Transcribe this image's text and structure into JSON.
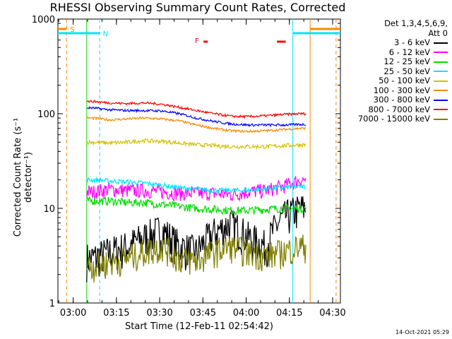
{
  "chart_data": {
    "type": "line",
    "title": "RHESSI Observing Summary Count Rates, Corrected",
    "xlabel": "Start Time (12-Feb-11 02:54:42)",
    "ylabel": "Corrected Count Rate (s⁻¹ detector⁻¹)",
    "yscale": "log",
    "ylim": [
      1,
      1000
    ],
    "y_ticks": [
      "1",
      "10",
      "100",
      "1000"
    ],
    "x_range_min": [
      0,
      98
    ],
    "x_ticks": [
      "03:00",
      "03:15",
      "03:30",
      "03:45",
      "04:00",
      "04:15",
      "04:30"
    ],
    "x_tick_min": [
      5.3,
      20.3,
      35.3,
      50.3,
      65.3,
      80.3,
      95.3
    ],
    "detector_label": "Det 1,3,4,5,6,9,",
    "attenuator_label": "Att 0",
    "x_minutes": [
      12,
      18,
      24,
      30,
      36,
      42,
      48,
      54,
      60,
      66,
      72,
      78,
      84
    ],
    "series": [
      {
        "name": "3 - 6 keV",
        "color": "#000000",
        "values": [
          3.0,
          3.5,
          4.0,
          5.0,
          6.0,
          4.0,
          3.5,
          5.5,
          7.0,
          5.0,
          4.0,
          8.0,
          10.0
        ]
      },
      {
        "name": "6 - 12 keV",
        "color": "#ff00ff",
        "values": [
          15,
          16,
          15.5,
          15.5,
          15,
          14.5,
          14.5,
          14.5,
          14,
          15,
          15.5,
          17,
          20
        ]
      },
      {
        "name": "12 - 25 keV",
        "color": "#00dd00",
        "values": [
          12,
          12,
          11.5,
          11.5,
          11,
          10.5,
          10,
          9.8,
          9.5,
          9.5,
          9.8,
          10,
          10
        ]
      },
      {
        "name": "25 - 50 keV",
        "color": "#00e5ff",
        "values": [
          20,
          19.5,
          19,
          18.5,
          17.5,
          16.5,
          16,
          15.5,
          15.5,
          15.5,
          16,
          16.5,
          17
        ]
      },
      {
        "name": "50 - 100 keV",
        "color": "#d4c000",
        "values": [
          50,
          49,
          50,
          52,
          51,
          49,
          47,
          46,
          45,
          45,
          45,
          46,
          47
        ]
      },
      {
        "name": "100 - 300 keV",
        "color": "#ff8800",
        "values": [
          90,
          86,
          88,
          90,
          88,
          84,
          76,
          70,
          66,
          65,
          66,
          68,
          70
        ]
      },
      {
        "name": "300 - 800 keV",
        "color": "#0000ff",
        "values": [
          115,
          110,
          108,
          108,
          107,
          100,
          90,
          83,
          78,
          76,
          76,
          76,
          77
        ]
      },
      {
        "name": "800 - 7000 keV",
        "color": "#ff0000",
        "values": [
          135,
          130,
          128,
          130,
          126,
          117,
          108,
          100,
          94,
          93,
          95,
          98,
          100
        ]
      },
      {
        "name": "7000 - 15000 keV",
        "color": "#808000",
        "values": [
          2.5,
          2.7,
          3.0,
          3.5,
          4.0,
          3.0,
          2.8,
          3.5,
          4.0,
          3.5,
          3.2,
          3.5,
          4.0
        ]
      }
    ],
    "annotations": [
      {
        "label": "S",
        "color": "#ff8800"
      },
      {
        "label": "N",
        "color": "#00e5ff"
      },
      {
        "label": "F",
        "color": "#ff0000"
      }
    ],
    "grid": false,
    "legend": "right"
  },
  "footer_timestamp": "14-Oct-2021 05:29"
}
